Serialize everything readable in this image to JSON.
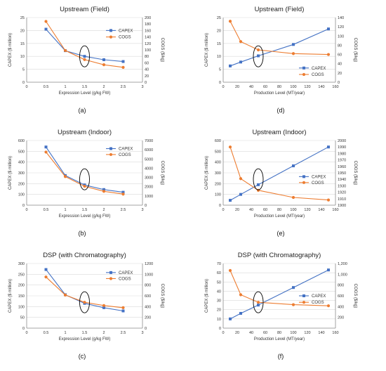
{
  "colors": {
    "capex": "#4472C4",
    "cogs": "#ED7D31",
    "grid": "#d9d9d9",
    "axis": "#8c8c8c",
    "highlight": "#000000"
  },
  "chart_data": [
    {
      "label": "(a)",
      "type": "line",
      "title": "Upstream (Field)",
      "xlabel": "Expression Level (g/kg FW)",
      "ylabel": "CAPEX ($ million)",
      "y2label": "COGS ($/kg)",
      "xlim": [
        0,
        3
      ],
      "ylim": [
        0,
        25
      ],
      "y2lim": [
        0,
        200
      ],
      "xticks": [
        "0",
        "0.5",
        "1",
        "1.5",
        "2",
        "2.5",
        "3"
      ],
      "yticks": [
        "0",
        "5",
        "10",
        "15",
        "20",
        "25"
      ],
      "y2ticks": [
        "0",
        "20",
        "40",
        "60",
        "80",
        "100",
        "120",
        "140",
        "160",
        "180",
        "200"
      ],
      "legend_position": "center-right",
      "legend_y": [
        20,
        17.5
      ],
      "highlight_x": 1.5,
      "series": [
        {
          "name": "CAPEX",
          "axis": "left",
          "color": "capex",
          "marker": "square",
          "x": [
            0.5,
            1,
            1.5,
            2,
            2.5
          ],
          "y": [
            20.5,
            12.2,
            10,
            8.7,
            8
          ]
        },
        {
          "name": "COGS",
          "axis": "right",
          "color": "cogs",
          "marker": "circle",
          "x": [
            0.5,
            1,
            1.5,
            2,
            2.5
          ],
          "y": [
            188,
            98,
            70,
            54,
            46
          ]
        }
      ]
    },
    {
      "label": "(d)",
      "type": "line",
      "title": "Upstream (Field)",
      "xlabel": "Production Level (MT/year)",
      "ylabel": "CAPEX ($ million)",
      "y2label": "COGS ($/kg)",
      "xlim": [
        0,
        160
      ],
      "ylim": [
        0,
        25
      ],
      "y2lim": [
        0,
        140
      ],
      "xticks": [
        "0",
        "20",
        "40",
        "60",
        "80",
        "100",
        "120",
        "140",
        "160"
      ],
      "yticks": [
        "0",
        "5",
        "10",
        "15",
        "20",
        "25"
      ],
      "y2ticks": [
        "0",
        "20",
        "40",
        "60",
        "80",
        "100",
        "120",
        "140"
      ],
      "legend_position": "bottom-right",
      "legend_y": [
        5.5,
        3
      ],
      "highlight_x": 50,
      "series": [
        {
          "name": "CAPEX",
          "axis": "left",
          "color": "capex",
          "marker": "square",
          "x": [
            10,
            25,
            50,
            100,
            150
          ],
          "y": [
            6.3,
            7.8,
            10.2,
            14.6,
            20.6
          ]
        },
        {
          "name": "COGS",
          "axis": "right",
          "color": "cogs",
          "marker": "circle",
          "x": [
            10,
            25,
            50,
            100,
            150
          ],
          "y": [
            132,
            88,
            70,
            62,
            60
          ]
        }
      ]
    },
    {
      "label": "(b)",
      "type": "line",
      "title": "Upstream (Indoor)",
      "xlabel": "Expression Level (g/kg FW)",
      "ylabel": "CAPEX ($ million)",
      "y2label": "COGS ($/kg)",
      "xlim": [
        0,
        3
      ],
      "ylim": [
        0,
        600
      ],
      "y2lim": [
        0,
        7000
      ],
      "xticks": [
        "0",
        "0.5",
        "1",
        "1.5",
        "2",
        "2.5",
        "3"
      ],
      "yticks": [
        "0",
        "100",
        "200",
        "300",
        "400",
        "500",
        "600"
      ],
      "y2ticks": [
        "0",
        "1000",
        "2000",
        "3000",
        "4000",
        "5000",
        "6000",
        "7000"
      ],
      "legend_position": "top-right",
      "legend_y": [
        525,
        470
      ],
      "highlight_x": 1.5,
      "series": [
        {
          "name": "CAPEX",
          "axis": "left",
          "color": "capex",
          "marker": "square",
          "x": [
            0.5,
            1,
            1.5,
            2,
            2.5
          ],
          "y": [
            540,
            275,
            188,
            145,
            120
          ]
        },
        {
          "name": "COGS",
          "axis": "right",
          "color": "cogs",
          "marker": "circle",
          "x": [
            0.5,
            1,
            1.5,
            2,
            2.5
          ],
          "y": [
            5750,
            3100,
            2050,
            1500,
            1200
          ]
        }
      ]
    },
    {
      "label": "(e)",
      "type": "line",
      "title": "Upstream (Indoor)",
      "xlabel": "Production Level (MT/year)",
      "ylabel": "CAPEX ($ million)",
      "y2label": "COGS ($/kg)",
      "xlim": [
        0,
        160
      ],
      "ylim": [
        0,
        600
      ],
      "y2lim": [
        1900,
        2000
      ],
      "xticks": [
        "0",
        "20",
        "40",
        "60",
        "80",
        "100",
        "120",
        "140",
        "160"
      ],
      "yticks": [
        "0",
        "100",
        "200",
        "300",
        "400",
        "500",
        "600"
      ],
      "y2ticks": [
        "1900",
        "1910",
        "1920",
        "1930",
        "1940",
        "1950",
        "1960",
        "1970",
        "1980",
        "1990",
        "2000"
      ],
      "legend_position": "center-right",
      "legend_y": [
        265,
        210
      ],
      "highlight_x": 50,
      "series": [
        {
          "name": "CAPEX",
          "axis": "left",
          "color": "capex",
          "marker": "square",
          "x": [
            10,
            25,
            50,
            100,
            150
          ],
          "y": [
            45,
            100,
            190,
            365,
            540
          ]
        },
        {
          "name": "COGS",
          "axis": "right",
          "color": "cogs",
          "marker": "circle",
          "x": [
            10,
            25,
            50,
            100,
            150
          ],
          "y": [
            1990,
            1941,
            1923,
            1912,
            1908
          ]
        }
      ]
    },
    {
      "label": "(c)",
      "type": "line",
      "title": "DSP (with Chromatography)",
      "xlabel": "Expression Level (g/kg FW)",
      "ylabel": "CAPEX ($ million)",
      "y2label": "COGS ($/kg)",
      "xlim": [
        0,
        3
      ],
      "ylim": [
        0,
        300
      ],
      "y2lim": [
        0,
        1200
      ],
      "xticks": [
        "0",
        "0.5",
        "1",
        "1.5",
        "2",
        "2.5",
        "3"
      ],
      "yticks": [
        "0",
        "50",
        "100",
        "150",
        "200",
        "250",
        "300"
      ],
      "y2ticks": [
        "0",
        "200",
        "400",
        "600",
        "800",
        "1000",
        "1200"
      ],
      "legend_position": "top-right",
      "legend_y": [
        258,
        230
      ],
      "highlight_x": 1.5,
      "series": [
        {
          "name": "CAPEX",
          "axis": "left",
          "color": "capex",
          "marker": "square",
          "x": [
            0.5,
            1,
            1.5,
            2,
            2.5
          ],
          "y": [
            272,
            155,
            115,
            95,
            80
          ]
        },
        {
          "name": "COGS",
          "axis": "right",
          "color": "cogs",
          "marker": "circle",
          "x": [
            0.5,
            1,
            1.5,
            2,
            2.5
          ],
          "y": [
            950,
            615,
            480,
            420,
            380
          ]
        }
      ]
    },
    {
      "label": "(f)",
      "type": "line",
      "title": "DSP (with Chromatography)",
      "xlabel": "Production Level (MT/year)",
      "ylabel": "CAPEX ($ million)",
      "y2label": "COGS ($/kg)",
      "xlim": [
        0,
        160
      ],
      "ylim": [
        0,
        70
      ],
      "y2lim": [
        0,
        1200
      ],
      "xticks": [
        "0",
        "20",
        "40",
        "60",
        "80",
        "100",
        "120",
        "140",
        "160"
      ],
      "yticks": [
        "0",
        "10",
        "20",
        "30",
        "40",
        "50",
        "60",
        "70"
      ],
      "y2ticks": [
        "200",
        "400",
        "600",
        "800",
        "1,000",
        "1,200"
      ],
      "y2tick_values": [
        200,
        400,
        600,
        800,
        1000,
        1200
      ],
      "legend_position": "center-right",
      "legend_y": [
        35,
        28
      ],
      "highlight_x": 50,
      "series": [
        {
          "name": "CAPEX",
          "axis": "left",
          "color": "capex",
          "marker": "square",
          "x": [
            10,
            25,
            50,
            100,
            150
          ],
          "y": [
            10,
            16,
            25,
            44,
            63
          ]
        },
        {
          "name": "COGS",
          "axis": "right",
          "color": "cogs",
          "marker": "circle",
          "x": [
            10,
            25,
            50,
            100,
            150
          ],
          "y": [
            1070,
            620,
            480,
            435,
            415
          ]
        }
      ]
    }
  ]
}
